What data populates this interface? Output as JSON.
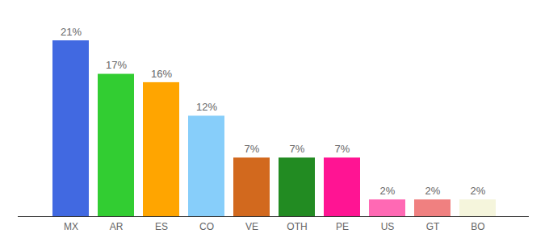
{
  "chart_data": {
    "type": "bar",
    "categories": [
      "MX",
      "AR",
      "ES",
      "CO",
      "VE",
      "OTH",
      "PE",
      "US",
      "GT",
      "BO"
    ],
    "values": [
      21,
      17,
      16,
      12,
      7,
      7,
      7,
      2,
      2,
      2
    ],
    "value_labels": [
      "21%",
      "17%",
      "16%",
      "12%",
      "7%",
      "7%",
      "7%",
      "2%",
      "2%",
      "2%"
    ],
    "colors": [
      "#4169e1",
      "#32cd32",
      "#ffa500",
      "#87cefa",
      "#d2691e",
      "#228b22",
      "#ff1493",
      "#ff69b4",
      "#f08080",
      "#f5f5dc"
    ],
    "ylim": [
      0,
      21
    ],
    "data_labels": true,
    "tick_labels": "x",
    "grid": false
  }
}
